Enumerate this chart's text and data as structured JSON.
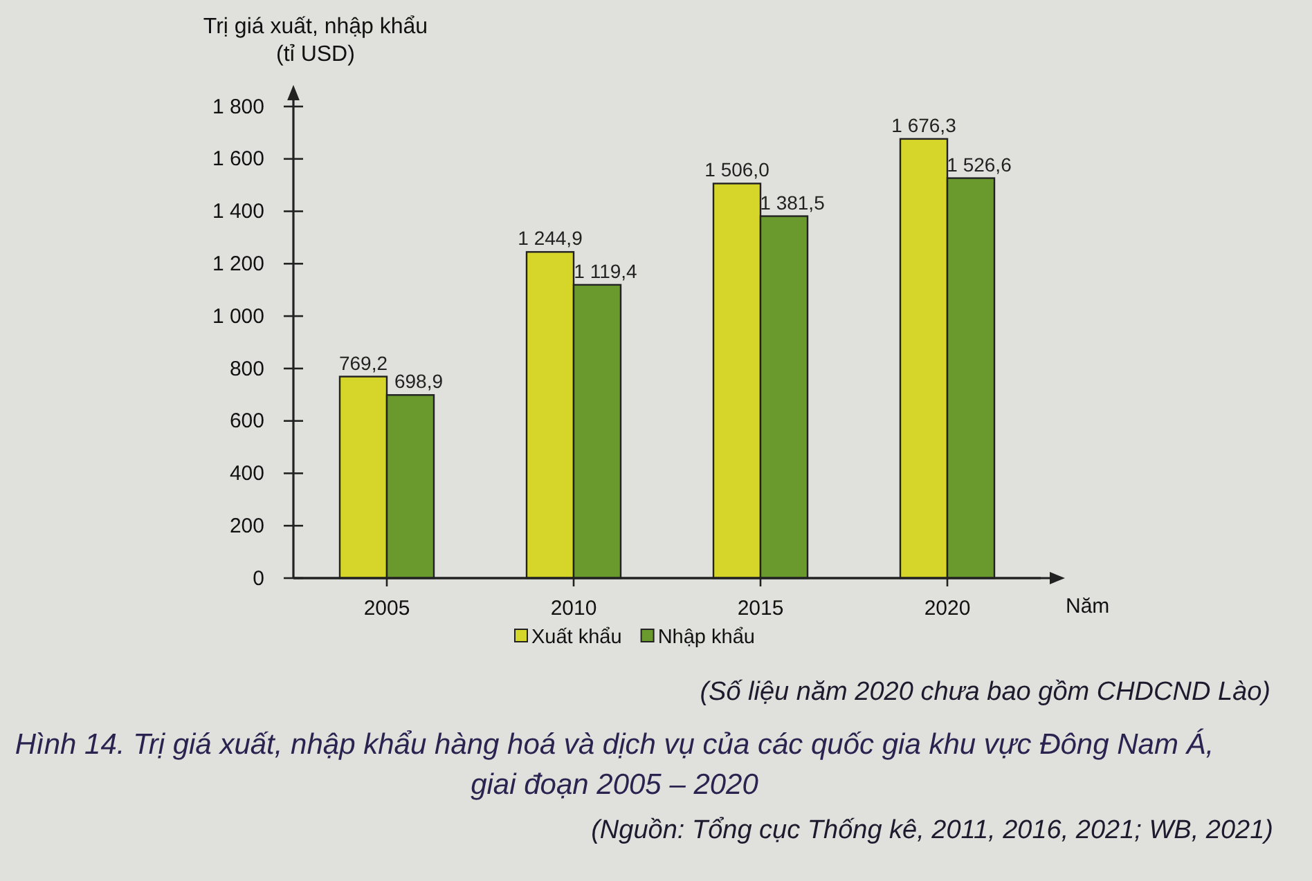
{
  "chart_data": {
    "type": "bar",
    "title": "Hình 14. Trị giá xuất, nhập khẩu hàng hoá và dịch vụ của các quốc gia khu vực Đông Nam Á, giai đoạn 2005 – 2020",
    "xlabel": "Năm",
    "ylabel": "Trị giá xuất, nhập khẩu (tỉ USD)",
    "annotations": [
      "(Số liệu năm 2020 chưa bao gồm CHDCND Lào)",
      "(Nguồn: Tổng cục Thống kê, 2011, 2016, 2021; WB, 2021)"
    ],
    "categories": [
      "2005",
      "2010",
      "2015",
      "2020"
    ],
    "series": [
      {
        "name": "Xuất khẩu",
        "color": "#d6d62a",
        "values": [
          769.2,
          1244.9,
          1506.0,
          1676.3
        ],
        "value_labels": [
          "769,2",
          "1 244,9",
          "1 506,0",
          "1 676,3"
        ]
      },
      {
        "name": "Nhập khẩu",
        "color": "#6a9a2e",
        "values": [
          698.9,
          1119.4,
          1381.5,
          1526.6
        ],
        "value_labels": [
          "698,9",
          "1 119,4",
          "1 381,5",
          "1 526,6"
        ]
      }
    ],
    "ylim": [
      0,
      1800
    ],
    "yticks": [
      0,
      200,
      400,
      600,
      800,
      {
        "value": 1000,
        "label": "1 000"
      },
      {
        "value": 1200,
        "label": "1 200"
      },
      {
        "value": 1400,
        "label": "1 400"
      },
      {
        "value": 1600,
        "label": "1 600"
      },
      {
        "value": 1800,
        "label": "1 800"
      }
    ],
    "legend": "bottom"
  }
}
